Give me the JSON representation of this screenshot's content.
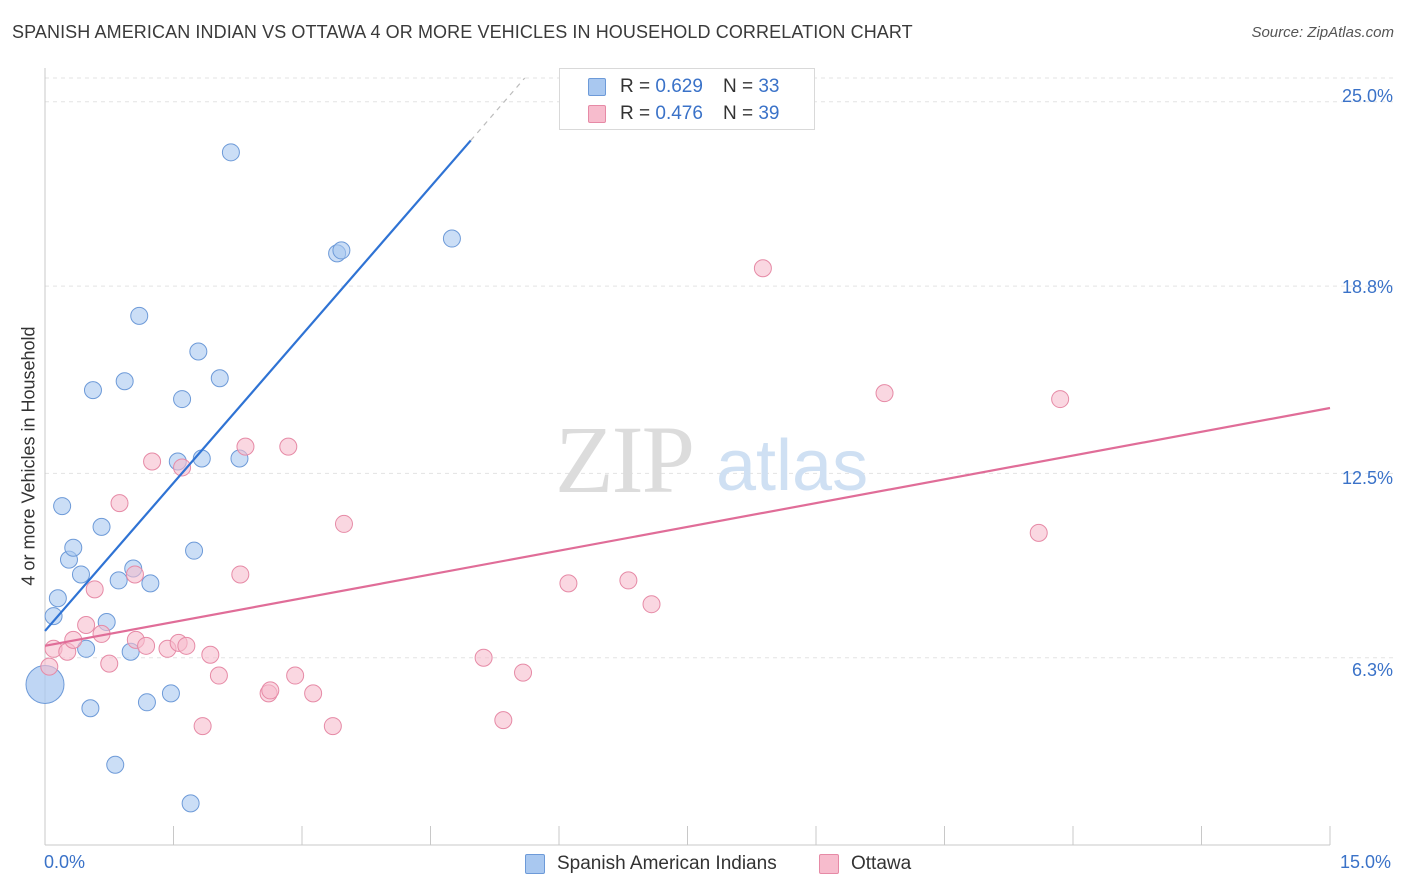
{
  "header": {
    "title": "SPANISH AMERICAN INDIAN VS OTTAWA 4 OR MORE VEHICLES IN HOUSEHOLD CORRELATION CHART",
    "source": "Source: ZipAtlas.com"
  },
  "watermark": {
    "zip": "ZIP",
    "atlas": "atlas"
  },
  "legend": {
    "rows": [
      {
        "r_label": "R =",
        "r_value": "0.629",
        "n_label": "N =",
        "n_value": "33",
        "color": "#a9c8f0",
        "stroke": "#6d9ad8"
      },
      {
        "r_label": "R =",
        "r_value": "0.476",
        "n_label": "N =",
        "n_value": "39",
        "color": "#f7bccd",
        "stroke": "#e68aa6"
      }
    ]
  },
  "bottom_legend": {
    "items": [
      {
        "label": "Spanish American Indians",
        "color": "#a9c8f0",
        "stroke": "#6d9ad8"
      },
      {
        "label": "Ottawa",
        "color": "#f7bccd",
        "stroke": "#e68aa6"
      }
    ]
  },
  "chart_data": {
    "type": "scatter",
    "title": "SPANISH AMERICAN INDIAN VS OTTAWA 4 OR MORE VEHICLES IN HOUSEHOLD CORRELATION CHART",
    "xlabel": "",
    "ylabel": "4 or more Vehicles in Household",
    "xlim": [
      0,
      15
    ],
    "ylim": [
      0,
      25.8
    ],
    "x_tick_labels": [
      "0.0%",
      "15.0%"
    ],
    "y_ticks": [
      6.3,
      12.5,
      18.8,
      25.0
    ],
    "y_tick_labels": [
      "6.3%",
      "12.5%",
      "18.8%",
      "25.0%"
    ],
    "grid": true,
    "legend_position": "top-center",
    "series": [
      {
        "name": "Spanish American Indians",
        "color": "#a9c8f0",
        "stroke": "#6d9ad8",
        "trend_color": "#2f73d4",
        "trend": {
          "x": [
            0,
            4.97
          ],
          "y": [
            7.2,
            23.7
          ]
        },
        "trend_dash": {
          "x": [
            4.97,
            5.6
          ],
          "y": [
            23.7,
            25.8
          ]
        },
        "points": [
          [
            0.0,
            5.4
          ],
          [
            0.1,
            7.7
          ],
          [
            0.15,
            8.3
          ],
          [
            0.2,
            11.4
          ],
          [
            0.28,
            9.6
          ],
          [
            0.33,
            10.0
          ],
          [
            0.42,
            9.1
          ],
          [
            0.48,
            6.6
          ],
          [
            0.53,
            4.6
          ],
          [
            0.56,
            15.3
          ],
          [
            0.66,
            10.7
          ],
          [
            0.72,
            7.5
          ],
          [
            0.82,
            2.7
          ],
          [
            0.86,
            8.9
          ],
          [
            0.93,
            15.6
          ],
          [
            1.0,
            6.5
          ],
          [
            1.03,
            9.3
          ],
          [
            1.1,
            17.8
          ],
          [
            1.19,
            4.8
          ],
          [
            1.23,
            8.8
          ],
          [
            1.47,
            5.1
          ],
          [
            1.55,
            12.9
          ],
          [
            1.6,
            15.0
          ],
          [
            1.7,
            1.4
          ],
          [
            1.74,
            9.9
          ],
          [
            1.79,
            16.6
          ],
          [
            1.83,
            13.0
          ],
          [
            2.04,
            15.7
          ],
          [
            2.17,
            23.3
          ],
          [
            2.27,
            13.0
          ],
          [
            3.41,
            19.9
          ],
          [
            3.46,
            20.0
          ],
          [
            4.75,
            20.4
          ]
        ]
      },
      {
        "name": "Ottawa",
        "color": "#f7bccd",
        "stroke": "#e68aa6",
        "trend_color": "#e06d98",
        "trend": {
          "x": [
            0,
            15
          ],
          "y": [
            6.7,
            14.7
          ]
        },
        "points": [
          [
            0.05,
            6.0
          ],
          [
            0.1,
            6.6
          ],
          [
            0.26,
            6.5
          ],
          [
            0.33,
            6.9
          ],
          [
            0.48,
            7.4
          ],
          [
            0.58,
            8.6
          ],
          [
            0.66,
            7.1
          ],
          [
            0.75,
            6.1
          ],
          [
            0.87,
            11.5
          ],
          [
            1.05,
            9.1
          ],
          [
            1.06,
            6.9
          ],
          [
            1.18,
            6.7
          ],
          [
            1.25,
            12.9
          ],
          [
            1.43,
            6.6
          ],
          [
            1.56,
            6.8
          ],
          [
            1.6,
            12.7
          ],
          [
            1.65,
            6.7
          ],
          [
            1.84,
            4.0
          ],
          [
            1.93,
            6.4
          ],
          [
            2.03,
            5.7
          ],
          [
            2.28,
            9.1
          ],
          [
            2.34,
            13.4
          ],
          [
            2.61,
            5.1
          ],
          [
            2.63,
            5.2
          ],
          [
            2.84,
            13.4
          ],
          [
            2.92,
            5.7
          ],
          [
            3.13,
            5.1
          ],
          [
            3.36,
            4.0
          ],
          [
            3.49,
            10.8
          ],
          [
            5.12,
            6.3
          ],
          [
            5.35,
            4.2
          ],
          [
            5.58,
            5.8
          ],
          [
            6.11,
            8.8
          ],
          [
            6.81,
            8.9
          ],
          [
            7.08,
            8.1
          ],
          [
            8.38,
            19.4
          ],
          [
            9.8,
            15.2
          ],
          [
            11.6,
            10.5
          ],
          [
            11.85,
            15.0
          ]
        ]
      }
    ]
  }
}
